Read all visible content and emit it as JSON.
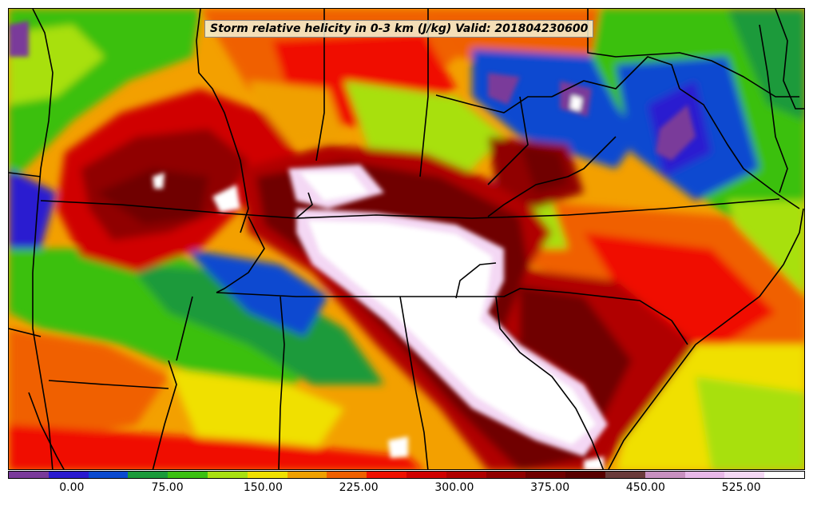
{
  "title": "Storm relative helicity in 0-3 km (J/kg) Valid: 201804230600",
  "colorbar": {
    "min": -50,
    "max": 575,
    "colors": [
      "#7a3a9a",
      "#2a1ad0",
      "#0a4ad0",
      "#1a9a3a",
      "#3ac010",
      "#a8e010",
      "#f0e000",
      "#f0a000",
      "#f06000",
      "#f01000",
      "#d00000",
      "#b00000",
      "#900000",
      "#700000",
      "#580000",
      "#6a3a3a",
      "#c890c0",
      "#e8b8e8",
      "#f4d8f4",
      "#ffffff"
    ],
    "tick_labels": [
      "0.00",
      "75.00",
      "150.00",
      "225.00",
      "300.00",
      "375.00",
      "450.00",
      "525.00"
    ],
    "tick_values": [
      0,
      75,
      150,
      225,
      300,
      375,
      450,
      525
    ]
  }
}
